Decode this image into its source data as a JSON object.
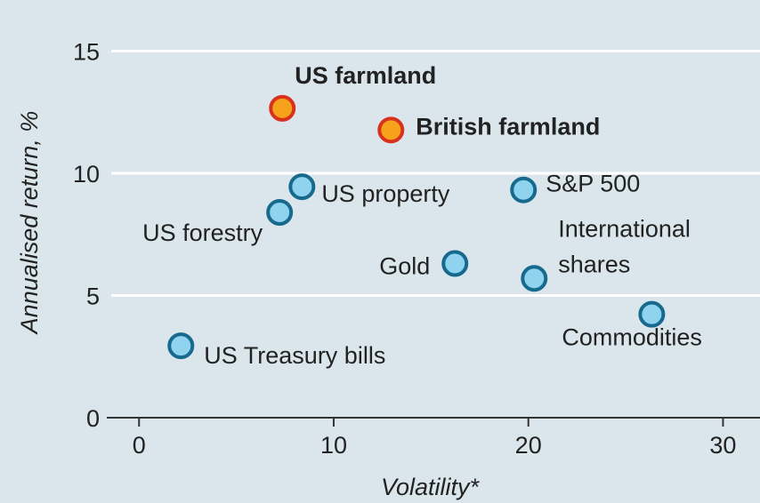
{
  "chart_data": {
    "type": "scatter",
    "xlabel": "Volatility*",
    "ylabel": "Annualised return, %",
    "xlim": [
      -1.2,
      31.9
    ],
    "ylim": [
      0,
      16
    ],
    "xticks": [
      0,
      10,
      20,
      30
    ],
    "yticks": [
      0,
      5,
      10,
      15
    ],
    "grid": true,
    "series": [
      {
        "labels": [
          "US farmland",
          "British farmland",
          "US property",
          "US forestry",
          "S&P 500",
          "Gold",
          "International\nshares",
          "Commodities",
          "US Treasury bills"
        ],
        "x": [
          7.36,
          12.94,
          8.37,
          7.22,
          19.75,
          16.23,
          20.3,
          26.34,
          2.15
        ],
        "values": [
          12.66,
          11.77,
          9.45,
          8.4,
          9.32,
          6.31,
          5.7,
          4.23,
          2.94
        ],
        "colors": [
          "#f7a21b",
          "#f7a21b",
          "#8fd3ef",
          "#8fd3ef",
          "#8fd3ef",
          "#8fd3ef",
          "#8fd3ef",
          "#8fd3ef",
          "#8fd3ef"
        ],
        "edge_colors": [
          "#d8321f",
          "#d8321f",
          "#17698e",
          "#17698e",
          "#17698e",
          "#17698e",
          "#17698e",
          "#17698e",
          "#17698e"
        ],
        "bold": [
          true,
          true,
          false,
          false,
          false,
          false,
          false,
          false,
          false
        ]
      }
    ]
  }
}
